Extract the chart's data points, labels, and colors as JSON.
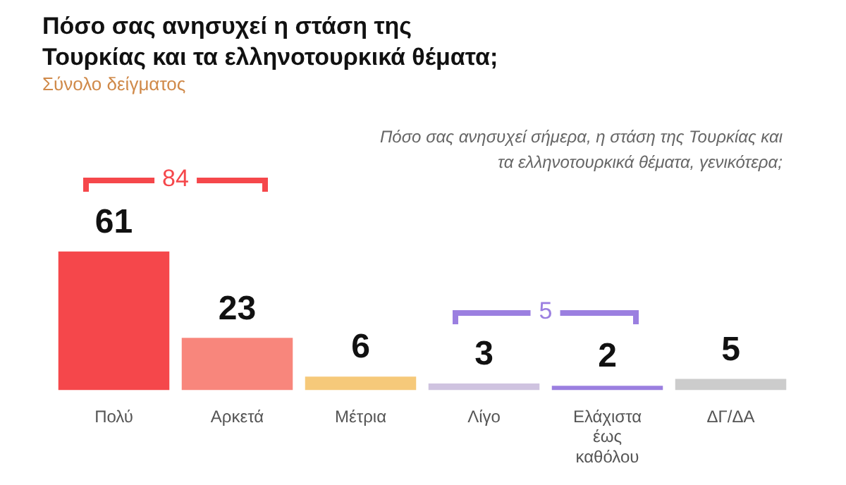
{
  "chart_data": {
    "type": "bar",
    "title": "Πόσο σας ανησυχεί η στάση της Τουρκίας και τα ελληνοτουρκικά θέματα;",
    "subtitle": "Σύνολο δείγματος",
    "categories": [
      "Πολύ",
      "Αρκετά",
      "Μέτρια",
      "Λίγο",
      "Ελάχιστα έως καθόλου",
      "ΔΓ/ΔΑ"
    ],
    "values": [
      61,
      23,
      6,
      3,
      2,
      5
    ],
    "colors": [
      "#f5474b",
      "#f8867c",
      "#f6c97a",
      "#cfc3e0",
      "#9b7fe0",
      "#cccccc"
    ],
    "data_labels": true,
    "annotations": [
      "Πόσο σας ανησυχεί σήμερα, η στάση της Τουρκίας και τα ελληνοτουρκικά θέματα, γενικότερα;",
      "84",
      "5"
    ]
  }
}
